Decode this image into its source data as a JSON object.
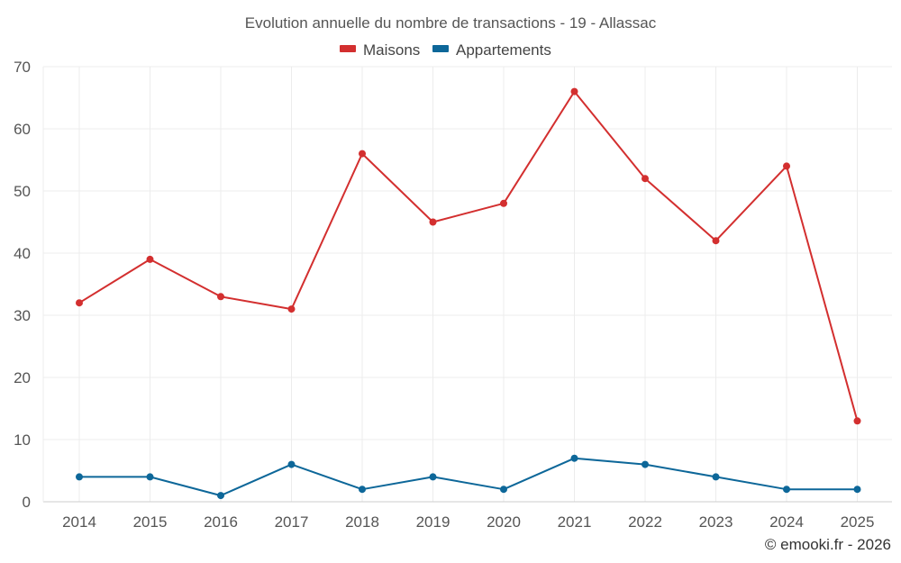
{
  "chart_data": {
    "type": "line",
    "title": "Evolution annuelle du nombre de transactions - 19 - Allassac",
    "categories": [
      "2014",
      "2015",
      "2016",
      "2017",
      "2018",
      "2019",
      "2020",
      "2021",
      "2022",
      "2023",
      "2024",
      "2025"
    ],
    "series": [
      {
        "name": "Maisons",
        "color": "#d32f2f",
        "values": [
          32,
          39,
          33,
          31,
          56,
          45,
          48,
          66,
          52,
          42,
          54,
          13
        ]
      },
      {
        "name": "Appartements",
        "color": "#0d6799",
        "values": [
          4,
          4,
          1,
          6,
          2,
          4,
          2,
          7,
          6,
          4,
          2,
          2
        ]
      }
    ],
    "ylim": [
      0,
      70
    ],
    "yticks": [
      0,
      10,
      20,
      30,
      40,
      50,
      60,
      70
    ],
    "grid": true,
    "legend_position": "top-center",
    "xlabel": "",
    "ylabel": ""
  },
  "credit": "© emooki.fr - 2026"
}
